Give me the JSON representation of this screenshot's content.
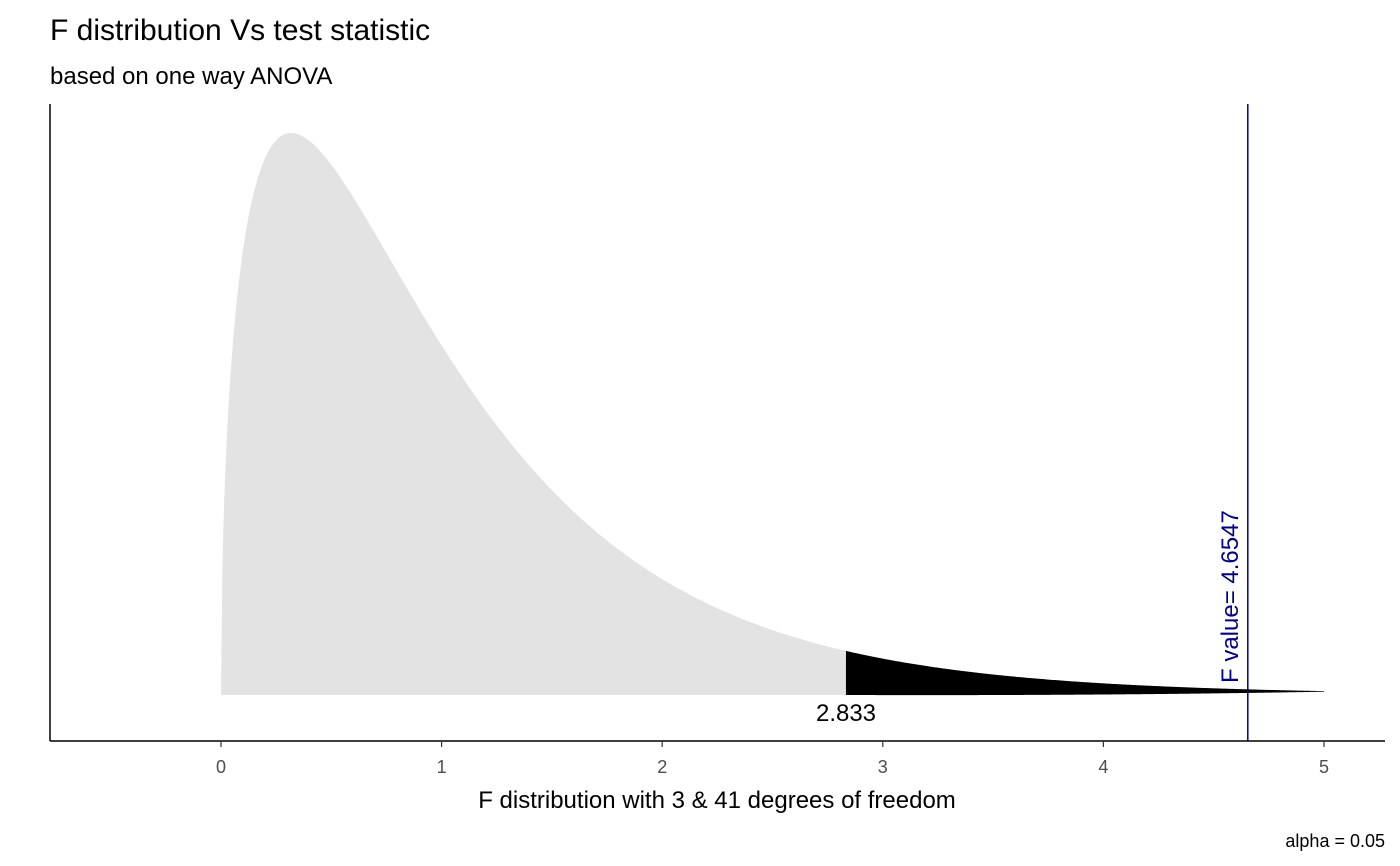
{
  "chart_data": {
    "type": "area",
    "title": "F distribution Vs test statistic",
    "subtitle": "based on one way ANOVA",
    "xlabel": "F distribution with 3 & 41 degrees of freedom",
    "ylabel": "",
    "caption": "alpha = 0.05",
    "df1": 3,
    "df2": 41,
    "alpha": 0.05,
    "xlim": [
      -0.77,
      5.27
    ],
    "x_ticks": [
      0,
      1,
      2,
      3,
      4,
      5
    ],
    "x_tick_labels": [
      "0",
      "1",
      "2",
      "3",
      "4",
      "5"
    ],
    "curve_x_range": [
      0,
      5
    ],
    "critical_value": 2.833,
    "critical_label": "2.833",
    "f_value": 4.6547,
    "f_value_label": "F value= 4.6547",
    "y_axis_ticks_shown": false,
    "grid": false,
    "colors": {
      "acceptance_region": "#e3e3e3",
      "rejection_region": "#000000",
      "f_value_line": "#00008b",
      "axis": "#000000",
      "tick_label": "#4d4d4d"
    }
  }
}
